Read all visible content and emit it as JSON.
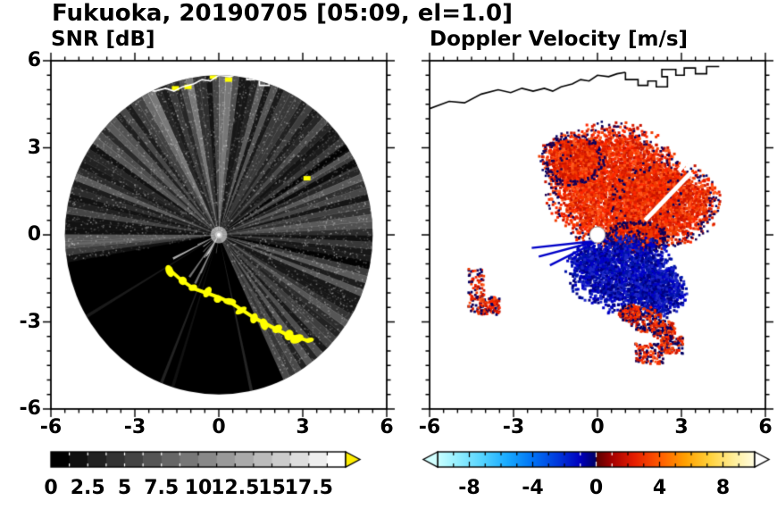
{
  "window": {
    "title": "Fukuoka, 20190705 [05:09, el=1.0]"
  },
  "chart_data": [
    {
      "type": "heatmap",
      "variant": "radar-ppi-scan",
      "panel": "left",
      "title": "SNR [dB]",
      "site": "Fukuoka",
      "date": "20190705",
      "time": "05:09",
      "elevation_deg": 1.0,
      "xlim": [
        -6,
        6
      ],
      "ylim": [
        -6,
        6
      ],
      "xticks": [
        -6,
        -3,
        0,
        3,
        6
      ],
      "yticks": [
        6,
        3,
        0,
        -3,
        -6
      ],
      "minor_tick_step": 0.5,
      "scan_radius": 5.5,
      "background": "#ffffff",
      "disk_color": "#000000",
      "colorbar": {
        "min": 0,
        "max": 20,
        "blocks": 16,
        "tick_values": [
          0,
          2.5,
          5,
          7.5,
          10,
          12.5,
          15,
          17.5
        ],
        "tick_labels": [
          "0",
          "2.5",
          "5",
          "7.5",
          "10",
          "12.5",
          "15",
          "17.5"
        ],
        "colormap": "grayscale-black-to-white",
        "over_arrow_color": "#ffee00"
      },
      "echo_fan": {
        "az_from": -100,
        "az_to": 155,
        "note": "diffuse gray echo fan, brightest toward N-NE"
      },
      "dark_spokes_az": [
        57,
        63,
        101
      ],
      "bright_spokes": {
        "az_from": 185,
        "az_to": 255,
        "max_radius": 1.9
      },
      "clutter_color": "#ffff00",
      "clutter_chain": [
        [
          -1.7,
          -1.25
        ],
        [
          -1.35,
          -1.55
        ],
        [
          -0.9,
          -1.85
        ],
        [
          -0.45,
          -2.0
        ],
        [
          0.0,
          -2.15
        ],
        [
          0.45,
          -2.35
        ],
        [
          0.85,
          -2.6
        ],
        [
          1.25,
          -2.85
        ],
        [
          1.65,
          -3.05
        ],
        [
          2.05,
          -3.25
        ],
        [
          2.45,
          -3.45
        ],
        [
          2.85,
          -3.55
        ],
        [
          3.2,
          -3.65
        ]
      ],
      "clutter_left_edge": [
        [
          -5.8,
          -1.6
        ],
        [
          -5.55,
          -2.15
        ]
      ],
      "clutter_spots": [
        [
          3.15,
          1.95
        ],
        [
          -1.55,
          5.05
        ],
        [
          -1.1,
          5.1
        ],
        [
          0.35,
          5.35
        ],
        [
          -0.2,
          5.45
        ]
      ],
      "coastline_color": "#ffffff"
    },
    {
      "type": "heatmap",
      "variant": "radar-ppi-scan",
      "panel": "right",
      "title": "Doppler Velocity [m/s]",
      "xlim": [
        -6,
        6
      ],
      "ylim": [
        -6,
        6
      ],
      "xticks": [
        -6,
        -3,
        0,
        3,
        6
      ],
      "minor_tick_step": 0.5,
      "scan_radius": 5.5,
      "background": "#ffffff",
      "colorbar": {
        "min": -10,
        "max": 10,
        "tick_values": [
          -8,
          -4,
          0,
          4,
          8
        ],
        "tick_labels": [
          "-8",
          "-4",
          "0",
          "4",
          "8"
        ],
        "stops": [
          [
            0,
            "#c8ffff"
          ],
          [
            0.06,
            "#96f0ff"
          ],
          [
            0.14,
            "#55d4ff"
          ],
          [
            0.22,
            "#19aaff"
          ],
          [
            0.3,
            "#0073f5"
          ],
          [
            0.38,
            "#0038dc"
          ],
          [
            0.45,
            "#0000be"
          ],
          [
            0.499,
            "#000064"
          ],
          [
            0.501,
            "#5a0000"
          ],
          [
            0.55,
            "#a50000"
          ],
          [
            0.62,
            "#e61e00"
          ],
          [
            0.7,
            "#ff5a00"
          ],
          [
            0.78,
            "#ffa000"
          ],
          [
            0.86,
            "#ffd23c"
          ],
          [
            0.94,
            "#fff0a0"
          ],
          [
            1,
            "#fffce1"
          ]
        ],
        "under_arrow_color": "#d2ffff",
        "over_arrow_color": "#ffffff"
      },
      "away_colors": [
        "#ff2800",
        "#f03c00",
        "#dc1e00",
        "#ff5a1e",
        "#c81400"
      ],
      "toward_colors": [
        "#0000c8",
        "#0014aa",
        "#000082",
        "#1e28c8"
      ],
      "edge_speck_colors": [
        "#000064",
        "#1e0050"
      ],
      "away_regions": [
        {
          "cx": 0.6,
          "cy": 1.7,
          "rx": 2.1,
          "ry": 1.9
        },
        {
          "cx": 2.4,
          "cy": 1.1,
          "rx": 1.7,
          "ry": 1.3
        },
        {
          "cx": -0.9,
          "cy": 2.6,
          "rx": 1.0,
          "ry": 0.8
        },
        {
          "cx": 1.4,
          "cy": -0.1,
          "rx": 1.0,
          "ry": 0.5
        }
      ],
      "toward_regions": [
        {
          "cx": 0.9,
          "cy": -1.3,
          "rx": 1.7,
          "ry": 1.2
        },
        {
          "cx": 2.2,
          "cy": -2.0,
          "rx": 0.9,
          "ry": 0.8
        },
        {
          "cx": -0.2,
          "cy": -0.9,
          "rx": 0.7,
          "ry": 0.5
        }
      ],
      "toward_streaks": [
        [
          -2.35,
          -0.45
        ],
        [
          -2.1,
          -0.75
        ],
        [
          -1.7,
          -1.05
        ]
      ],
      "mixed_patches": [
        {
          "x": 1.7,
          "y": -2.9,
          "r": 0.45
        },
        {
          "x": 2.4,
          "y": -3.3,
          "r": 0.35
        },
        {
          "x": 1.15,
          "y": -2.7,
          "r": 0.3
        }
      ],
      "isolated_patches": [
        {
          "x": -4.35,
          "y": -1.95,
          "w": 0.3,
          "h": 0.8
        },
        {
          "x": -3.85,
          "y": -2.45,
          "w": 0.35,
          "h": 0.3
        },
        {
          "x": 1.85,
          "y": -4.1,
          "w": 0.5,
          "h": 0.35
        },
        {
          "x": 2.65,
          "y": -3.8,
          "w": 0.4,
          "h": 0.3
        }
      ],
      "white_gaps": [
        [
          [
            1.7,
            0.5
          ],
          [
            3.3,
            2.1
          ]
        ],
        [
          [
            2.9,
            2.2
          ],
          [
            3.6,
            3.0
          ]
        ]
      ],
      "center_disk": {
        "r": 0.28,
        "color": "#ffffff"
      },
      "coastline_color": "#000000"
    }
  ],
  "coastline": {
    "main": [
      [
        -6,
        4.35
      ],
      [
        -5.3,
        4.6
      ],
      [
        -4.75,
        4.55
      ],
      [
        -4.15,
        4.85
      ],
      [
        -3.55,
        5.0
      ],
      [
        -3.1,
        4.9
      ],
      [
        -2.7,
        5.05
      ],
      [
        -2.3,
        4.95
      ],
      [
        -1.9,
        5.05
      ],
      [
        -1.6,
        4.95
      ],
      [
        -1.3,
        5.1
      ],
      [
        -0.9,
        5.2
      ],
      [
        -0.6,
        5.35
      ],
      [
        -0.3,
        5.3
      ],
      [
        0.0,
        5.5
      ],
      [
        0.4,
        5.45
      ],
      [
        0.7,
        5.55
      ],
      [
        1.0,
        5.6
      ]
    ],
    "port": [
      [
        1.0,
        5.6
      ],
      [
        1.0,
        5.35
      ],
      [
        1.45,
        5.35
      ],
      [
        1.45,
        5.15
      ],
      [
        1.8,
        5.15
      ],
      [
        1.8,
        5.3
      ],
      [
        2.1,
        5.3
      ],
      [
        2.1,
        5.1
      ],
      [
        2.5,
        5.1
      ],
      [
        2.5,
        5.45
      ],
      [
        2.3,
        5.45
      ],
      [
        2.3,
        5.7
      ],
      [
        2.8,
        5.7
      ],
      [
        2.8,
        5.5
      ],
      [
        3.1,
        5.5
      ],
      [
        3.1,
        5.75
      ],
      [
        3.5,
        5.75
      ],
      [
        3.5,
        5.55
      ],
      [
        3.9,
        5.55
      ],
      [
        3.9,
        5.8
      ],
      [
        4.35,
        5.8
      ]
    ]
  }
}
